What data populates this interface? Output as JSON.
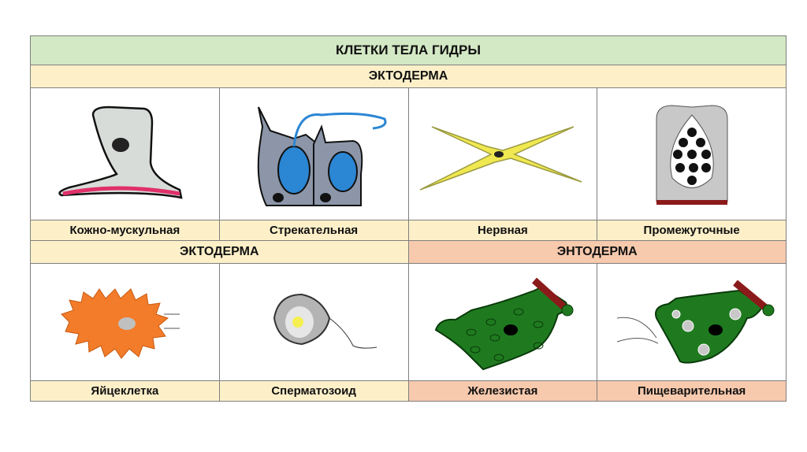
{
  "title": "КЛЕТКИ ТЕЛА ГИДРЫ",
  "row1_header": "ЭКТОДЕРМА",
  "row1_labels": [
    "Кожно-мускульная",
    "Стрекательная",
    "Нервная",
    "Промежуточные"
  ],
  "row2_headers": {
    "left": "ЭКТОДЕРМА",
    "right": "ЭНТОДЕРМА"
  },
  "row2_labels": [
    "Яйцеклетка",
    "Сперматозоид",
    "Железистая",
    "Пищеварительная"
  ],
  "colors": {
    "title_bg": "#d3e8c4",
    "ectoderm_bg": "#fdf0c9",
    "endoderm_bg": "#f7c9ad"
  }
}
